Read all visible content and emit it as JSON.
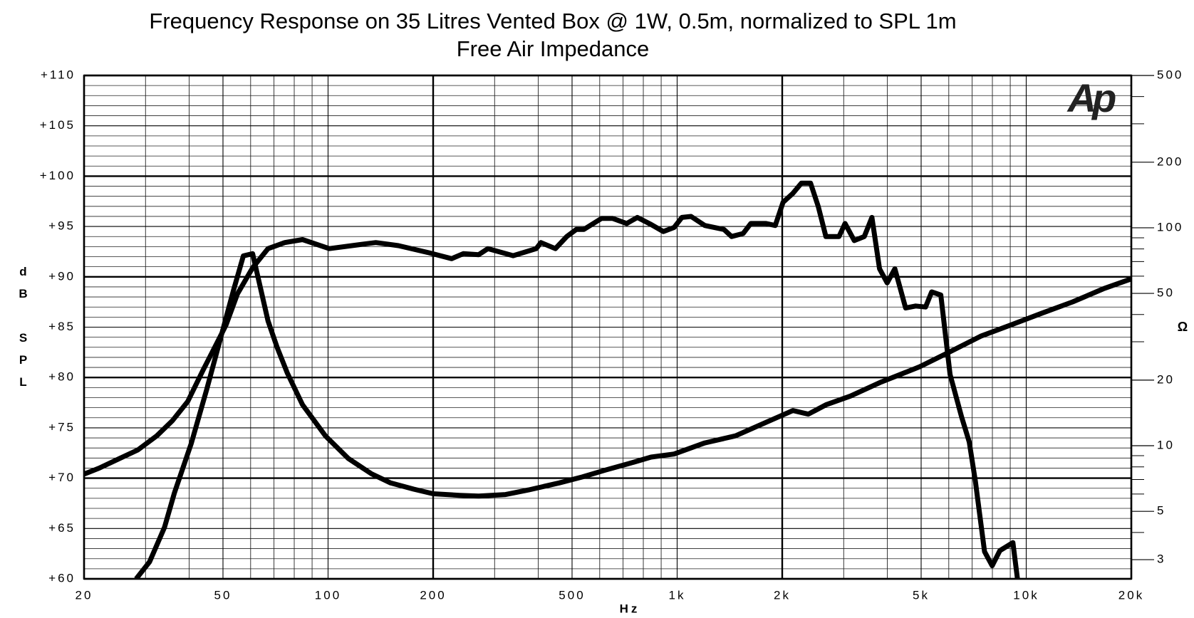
{
  "chart_data": {
    "type": "line",
    "title": "Frequency Response on 35 Litres Vented Box @ 1W, 0.5m, normalized to SPL 1m",
    "subtitle": "Free Air Impedance",
    "xlabel": "Hz",
    "ylabel": "dB SPL",
    "y2label": "Ω",
    "logo": "Ap",
    "xscale": "log",
    "y2scale": "log",
    "grid": true,
    "xlim": [
      20,
      20000
    ],
    "ylim": [
      60,
      110
    ],
    "y2lim": [
      2.45,
      500
    ],
    "xticks": [
      20,
      50,
      100,
      200,
      500,
      {
        "value": 1000,
        "label": "1k"
      },
      {
        "value": 2000,
        "label": "2k"
      },
      {
        "value": 5000,
        "label": "5k"
      },
      {
        "value": 10000,
        "label": "10k"
      },
      {
        "value": 20000,
        "label": "20k"
      }
    ],
    "x_minor_ticks": [
      30,
      40,
      60,
      70,
      80,
      90,
      300,
      400,
      600,
      700,
      800,
      900,
      3000,
      4000,
      6000,
      7000,
      8000,
      9000
    ],
    "yticks": [
      {
        "value": 60,
        "label": "+60"
      },
      {
        "value": 65,
        "label": "+65"
      },
      {
        "value": 70,
        "label": "+70"
      },
      {
        "value": 75,
        "label": "+75"
      },
      {
        "value": 80,
        "label": "+80"
      },
      {
        "value": 85,
        "label": "+85"
      },
      {
        "value": 90,
        "label": "+90"
      },
      {
        "value": 95,
        "label": "+95"
      },
      {
        "value": 100,
        "label": "+100"
      },
      {
        "value": 105,
        "label": "+105"
      },
      {
        "value": 110,
        "label": "+110"
      }
    ],
    "y_minor_ticks": [
      61,
      62,
      63,
      64,
      66,
      67,
      68,
      69,
      71,
      72,
      73,
      74,
      76,
      77,
      78,
      79,
      81,
      82,
      83,
      84,
      86,
      87,
      88,
      89,
      91,
      92,
      93,
      94,
      96,
      97,
      98,
      99,
      101,
      102,
      103,
      104,
      106,
      107,
      108,
      109
    ],
    "y2ticks": [
      3,
      5,
      10,
      20,
      50,
      100,
      200,
      500
    ],
    "y2_minor_ticks": [
      4,
      6,
      7,
      8,
      9,
      30,
      40,
      60,
      70,
      80,
      90,
      300,
      400
    ],
    "series": [
      {
        "color": "#000000",
        "x": [
          20,
          22.1,
          25.1,
          28.5,
          32.3,
          35.8,
          39.6,
          43.8,
          47.2,
          51.0,
          55.0,
          60.8,
          67.3,
          75.2,
          84.5,
          100.8,
          123,
          137,
          159,
          194,
          226,
          244,
          270,
          287,
          339,
          395,
          407,
          448,
          483,
          514,
          540,
          607,
          654,
          717,
          769,
          842,
          913,
          980,
          1032,
          1096,
          1200,
          1362,
          1432,
          1545,
          1626,
          1798,
          1910,
          2010,
          2147,
          2269,
          2411,
          2536,
          2668,
          2908,
          3027,
          3217,
          3436,
          3613,
          3800,
          3996,
          4204,
          4513,
          4822,
          5148,
          5361,
          5694,
          6050,
          6528,
          6866,
          7150,
          7596,
          7990,
          8405,
          9160,
          9440
        ],
        "values": [
          70.4,
          71.0,
          71.9,
          72.8,
          74.2,
          75.7,
          77.6,
          80.7,
          82.9,
          85.2,
          88.3,
          90.9,
          92.8,
          93.4,
          93.7,
          92.8,
          93.2,
          93.4,
          93.1,
          92.4,
          91.8,
          92.3,
          92.2,
          92.8,
          92.1,
          92.8,
          93.4,
          92.8,
          94.0,
          94.7,
          94.7,
          95.8,
          95.8,
          95.3,
          95.9,
          95.2,
          94.5,
          94.9,
          95.9,
          96.0,
          95.1,
          94.7,
          94.0,
          94.3,
          95.3,
          95.3,
          95.1,
          97.4,
          98.3,
          99.3,
          99.3,
          97.0,
          94.0,
          94.0,
          95.3,
          93.6,
          94.0,
          95.9,
          90.8,
          89.4,
          90.8,
          86.9,
          87.1,
          87.0,
          88.5,
          88.2,
          80.3,
          76.1,
          73.6,
          69.7,
          62.7,
          61.3,
          62.8,
          63.6,
          60.0
        ]
      },
      {
        "color": "#000000",
        "axis": "y2",
        "x": [
          28.2,
          30.8,
          34.0,
          36.3,
          40.6,
          44.9,
          50.4,
          53.6,
          57.2,
          60.8,
          67.3,
          71.5,
          76.4,
          84.5,
          98.3,
          114.4,
          133.2,
          151.1,
          175.8,
          200,
          238,
          270,
          322.5,
          375.4,
          459,
          535,
          622,
          724,
          842,
          980,
          1200,
          1469,
          1798,
          2147,
          2375,
          2668,
          3136,
          3840,
          4944,
          6050,
          7408,
          9068,
          11098,
          13586,
          16634,
          20000
        ],
        "values": [
          2.45,
          2.93,
          4.22,
          6.07,
          10.3,
          18.1,
          35.9,
          51.7,
          74.3,
          76.1,
          37.4,
          28.2,
          21.6,
          15.4,
          11.1,
          8.73,
          7.43,
          6.75,
          6.32,
          6.02,
          5.92,
          5.87,
          5.97,
          6.27,
          6.75,
          7.19,
          7.73,
          8.26,
          8.87,
          9.16,
          10.3,
          11.1,
          12.8,
          14.5,
          13.96,
          15.4,
          16.9,
          19.6,
          23.0,
          27.0,
          31.8,
          35.9,
          40.6,
          45.7,
          52.5,
          58.3
        ]
      }
    ]
  }
}
